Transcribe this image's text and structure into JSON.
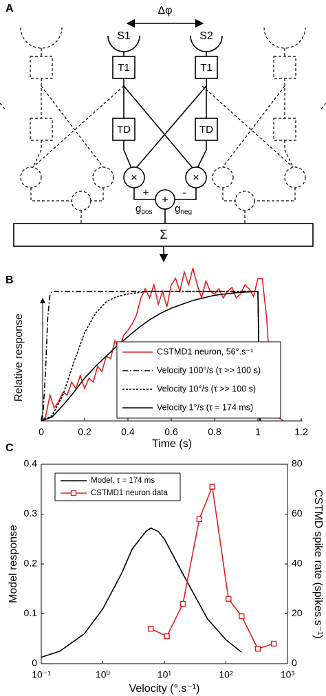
{
  "panel_labels": [
    "A",
    "B",
    "C"
  ],
  "diagram": {
    "delta": "Δφ",
    "sensors": [
      "S1",
      "S2"
    ],
    "t1": [
      "T1",
      "T1"
    ],
    "td": [
      "TD",
      "TD"
    ],
    "mult": [
      "×",
      "×"
    ],
    "signs": [
      "+",
      "-"
    ],
    "gpos": {
      "base": "g",
      "sub": "pos"
    },
    "gneg": {
      "base": "g",
      "sub": "neg"
    },
    "sum_node": "+",
    "sum": "Σ"
  },
  "chart_data": [
    {
      "type": "line",
      "xlabel": "Time (s)",
      "ylabel": "Relative response",
      "xlim": [
        0,
        1.2
      ],
      "ylim": [
        0,
        1.2
      ],
      "xticks": [
        0,
        0.2,
        0.4,
        0.6,
        0.8,
        1,
        1.2
      ],
      "legend": "lower right",
      "series": [
        {
          "name": "CSTMD1 neuron, 56°.s⁻¹",
          "color": "#e0211f",
          "dash": "solid",
          "x": [
            0,
            0.02,
            0.04,
            0.06,
            0.08,
            0.1,
            0.12,
            0.14,
            0.16,
            0.18,
            0.2,
            0.22,
            0.24,
            0.26,
            0.28,
            0.3,
            0.32,
            0.34,
            0.36,
            0.38,
            0.4,
            0.42,
            0.44,
            0.46,
            0.48,
            0.5,
            0.52,
            0.54,
            0.56,
            0.58,
            0.6,
            0.62,
            0.64,
            0.66,
            0.68,
            0.7,
            0.72,
            0.74,
            0.76,
            0.78,
            0.8,
            0.82,
            0.84,
            0.86,
            0.88,
            0.9,
            0.92,
            0.94,
            0.96,
            0.98,
            1.0,
            1.02,
            1.04,
            1.06,
            1.08,
            1.1,
            1.12
          ],
          "values": [
            0,
            0.03,
            0.2,
            0.1,
            0.15,
            0.22,
            0.2,
            0.3,
            0.25,
            0.35,
            0.25,
            0.33,
            0.3,
            0.42,
            0.38,
            0.5,
            0.48,
            0.62,
            0.55,
            0.66,
            0.7,
            0.75,
            0.82,
            0.95,
            1.02,
            0.95,
            1.05,
            0.9,
            1.0,
            0.88,
            1.05,
            1.1,
            1.0,
            1.15,
            1.05,
            1.18,
            1.05,
            0.95,
            1.08,
            1.0,
            0.98,
            1.02,
            0.95,
            1.0,
            1.03,
            0.95,
            0.98,
            1.05,
            1.02,
            0.96,
            1.1,
            1.1,
            0.8,
            0.3,
            0.05,
            0.02,
            0
          ]
        },
        {
          "name": "Velocity 100°/s (τ >> 100 s)",
          "color": "#000000",
          "dash": "dashdot",
          "x": [
            0,
            0.01,
            0.02,
            0.03,
            0.04,
            0.05,
            0.06,
            1.0,
            1.01
          ],
          "values": [
            0,
            0.1,
            0.4,
            0.8,
            0.97,
            1,
            1,
            1,
            0
          ]
        },
        {
          "name": "Velocity 10°/s (τ >> 100 s)",
          "color": "#000000",
          "dash": "dashed",
          "x": [
            0,
            0.05,
            0.1,
            0.15,
            0.2,
            0.25,
            0.3,
            0.35,
            0.4,
            0.5,
            0.6,
            1.0,
            1.01
          ],
          "values": [
            0,
            0.04,
            0.2,
            0.45,
            0.68,
            0.83,
            0.92,
            0.96,
            0.98,
            1,
            1,
            1,
            0
          ]
        },
        {
          "name": "Velocity 1°/s (τ = 174 ms)",
          "color": "#000000",
          "dash": "solid",
          "x": [
            0,
            0.05,
            0.1,
            0.15,
            0.2,
            0.25,
            0.3,
            0.35,
            0.4,
            0.45,
            0.5,
            0.55,
            0.6,
            0.7,
            0.8,
            0.9,
            1.0,
            1.01
          ],
          "values": [
            0,
            0.03,
            0.12,
            0.22,
            0.33,
            0.42,
            0.5,
            0.58,
            0.65,
            0.72,
            0.78,
            0.83,
            0.87,
            0.93,
            0.97,
            0.99,
            1,
            0
          ]
        }
      ]
    },
    {
      "type": "line",
      "xlabel": "Velocity (°.s⁻¹)",
      "ylabel": "Model response",
      "y2label": "CSTMD spike rate (spikes.s⁻¹)",
      "xlog": true,
      "xlim": [
        0.1,
        1000
      ],
      "ylim": [
        0,
        0.4
      ],
      "y2lim": [
        0,
        80
      ],
      "xticks": [
        {
          "value": 0.1,
          "label": "10⁻¹"
        },
        {
          "value": 1,
          "label": "10⁰"
        },
        {
          "value": 10,
          "label": "10¹"
        },
        {
          "value": 100,
          "label": "10²"
        },
        {
          "value": 1000,
          "label": "10³"
        }
      ],
      "yticks": [
        0,
        0.1,
        0.2,
        0.3,
        0.4
      ],
      "y2ticks": [
        0,
        20,
        40,
        60,
        80
      ],
      "legend": "upper left",
      "series": [
        {
          "name": "Model, τ = 174 ms",
          "color": "#000000",
          "dash": "solid",
          "x": [
            0.1,
            0.2,
            0.5,
            1,
            2,
            3,
            5,
            6,
            8,
            10,
            20,
            50,
            100,
            180
          ],
          "values": [
            0.013,
            0.025,
            0.06,
            0.11,
            0.18,
            0.23,
            0.265,
            0.272,
            0.265,
            0.25,
            0.18,
            0.09,
            0.048,
            0.023
          ]
        },
        {
          "name": "CSTMD1 neuron data",
          "color": "#e0211f",
          "dash": "solid",
          "marker": "square",
          "axis": "y2",
          "x": [
            6,
            11,
            20,
            37,
            60,
            110,
            180,
            330,
            600
          ],
          "values": [
            14,
            11,
            24,
            58,
            71,
            26,
            19,
            6,
            8
          ]
        }
      ]
    }
  ]
}
